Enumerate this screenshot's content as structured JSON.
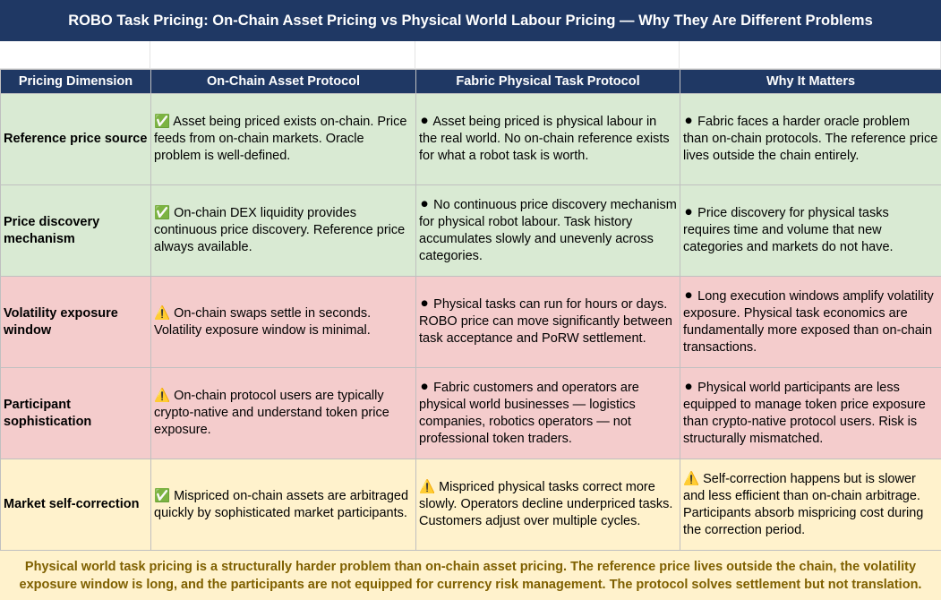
{
  "header": {
    "title": "ROBO Task Pricing: On-Chain Asset Pricing vs Physical World Labour Pricing — Why They Are Different Problems"
  },
  "table": {
    "columns": [
      "Pricing Dimension",
      "On-Chain Asset Protocol",
      "Fabric Physical Task Protocol",
      "Why It Matters"
    ],
    "rows": [
      [
        "Reference price source",
        "✅ Asset being priced exists on-chain. Price feeds from on-chain markets. Oracle problem is well-defined.",
        "⚫ Asset being priced is physical labour in the real world. No on-chain reference exists for what a robot task is worth.",
        "⚫ Fabric faces a harder oracle problem than on-chain protocols. The reference price lives outside the chain entirely."
      ],
      [
        "Price discovery mechanism",
        "✅ On-chain DEX liquidity provides continuous price discovery. Reference price always available.",
        "⚫ No continuous price discovery mechanism for physical robot labour. Task history accumulates slowly and unevenly across categories.",
        "⚫ Price discovery for physical tasks requires time and volume that new categories and markets do not have."
      ],
      [
        "Volatility exposure window",
        "⚠️ On-chain swaps settle in seconds. Volatility exposure window is minimal.",
        "⚫ Physical tasks can run for hours or days. ROBO price can move significantly between task acceptance and PoRW settlement.",
        "⚫ Long execution windows amplify volatility exposure. Physical task economics are fundamentally more exposed than on-chain transactions."
      ],
      [
        "Participant sophistication",
        "⚠️ On-chain protocol users are typically crypto-native and understand token price exposure.",
        "⚫ Fabric customers and operators are physical world businesses — logistics companies, robotics operators — not professional token traders.",
        "⚫ Physical world participants are less equipped to manage token price exposure than crypto-native protocol users. Risk is structurally mismatched."
      ],
      [
        "Market self-correction",
        "✅ Mispriced on-chain assets are arbitraged quickly by sophisticated market participants.",
        "⚠️ Mispriced physical tasks correct more slowly. Operators decline underpriced tasks. Customers adjust over multiple cycles.",
        "⚠️ Self-correction happens but is slower and less efficient than on-chain arbitrage. Participants absorb mispricing cost during the correction period."
      ]
    ]
  },
  "footer": {
    "text": "Physical world task pricing is a structurally harder problem than on-chain asset pricing. The reference price lives outside the chain, the volatility exposure window is long, and the participants are not equipped for currency risk management. The protocol solves settlement but not translation."
  }
}
